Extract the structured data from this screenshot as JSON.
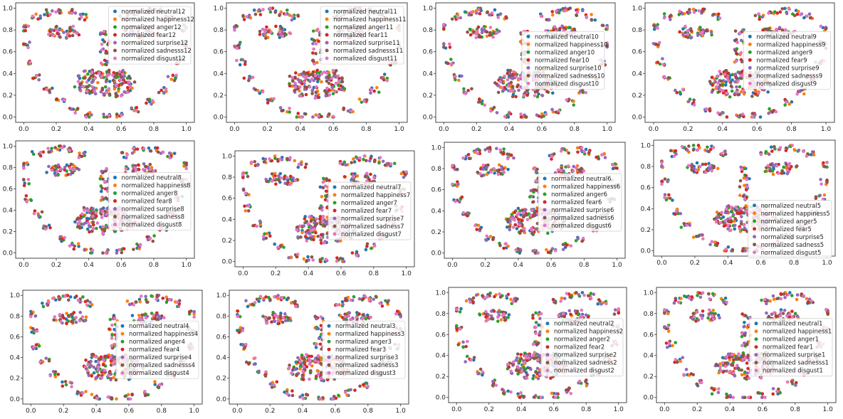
{
  "colors": {
    "neutral": "#1f77b4",
    "happiness": "#ff7f0e",
    "anger": "#2ca02c",
    "fear": "#d62728",
    "surprise": "#9467bd",
    "sadness": "#8c564b",
    "disgust": "#e377c2"
  },
  "chart_data": [
    {
      "type": "scatter",
      "panel": 12,
      "legend": [
        "normalized neutral12",
        "normalized happiness12",
        "normalized anger12",
        "normalized fear12",
        "normalized surprise12",
        "normalized sadnesss12",
        "normalized disgust12"
      ],
      "xticks": [
        "0.0",
        "0.2",
        "0.4",
        "0.6",
        "0.8",
        "1.0"
      ],
      "yticks": [
        "0.0",
        "0.2",
        "0.4",
        "0.6",
        "0.8",
        "1.0"
      ],
      "xlim": [
        0,
        1
      ],
      "ylim": [
        0,
        1
      ],
      "legend_loc": "upper-right"
    },
    {
      "type": "scatter",
      "panel": 11,
      "legend": [
        "normalized neutral11",
        "normalized happiness11",
        "normalized anger11",
        "normalized fear11",
        "normalized surprise11",
        "normalized sadnesss11",
        "normalized disgust11"
      ],
      "xticks": [
        "0.0",
        "0.2",
        "0.4",
        "0.6",
        "0.8",
        "1.0"
      ],
      "yticks": [
        "0.0",
        "0.2",
        "0.4",
        "0.6",
        "0.8",
        "1.0"
      ],
      "xlim": [
        0,
        1
      ],
      "ylim": [
        0,
        1
      ],
      "legend_loc": "upper-right"
    },
    {
      "type": "scatter",
      "panel": 10,
      "legend": [
        "normalized neutral10",
        "normalized happiness10",
        "normalized anger10",
        "normalized fear10",
        "normalized surprise10",
        "normalized sadnesss10",
        "normalized disgust10"
      ],
      "xticks": [
        "0.0",
        "0.2",
        "0.4",
        "0.6",
        "0.8",
        "1.0"
      ],
      "yticks": [
        "0.0",
        "0.2",
        "0.4",
        "0.6",
        "0.8",
        "1.0"
      ],
      "xlim": [
        0,
        1
      ],
      "ylim": [
        0,
        1
      ],
      "legend_loc": "center-right"
    },
    {
      "type": "scatter",
      "panel": 9,
      "legend": [
        "normalized neutral9",
        "normalized happiness9",
        "normalized anger9",
        "normalized fear9",
        "normalized surprise9",
        "normalized sadnesss9",
        "normalized disgust9"
      ],
      "xticks": [
        "0.0",
        "0.2",
        "0.4",
        "0.6",
        "0.8",
        "1.0"
      ],
      "yticks": [
        "0.0",
        "0.2",
        "0.4",
        "0.6",
        "0.8",
        "1.0"
      ],
      "xlim": [
        0,
        1
      ],
      "ylim": [
        0,
        1
      ],
      "legend_loc": "center-right"
    },
    {
      "type": "scatter",
      "panel": 8,
      "legend": [
        "normalized neutral8",
        "normalized happiness8",
        "normalized anger8",
        "normalized fear8",
        "normalized surprise8",
        "normalized sadness8",
        "normalized disgust8"
      ],
      "xticks": [
        "0.0",
        "0.2",
        "0.4",
        "0.6",
        "0.8",
        "1.0"
      ],
      "yticks": [
        "0.0",
        "0.2",
        "0.4",
        "0.6",
        "0.8",
        "1.0"
      ],
      "xlim": [
        0,
        1
      ],
      "ylim": [
        0,
        1
      ],
      "legend_loc": "center-right"
    },
    {
      "type": "scatter",
      "panel": 7,
      "legend": [
        "normalized neutral7",
        "normalized happiness7",
        "normalized anger7",
        "normalized fear7",
        "normalized surprise7",
        "normalized sadness7",
        "normalized disgust7"
      ],
      "xticks": [
        "0.0",
        "0.2",
        "0.4",
        "0.6",
        "0.8",
        "1.0"
      ],
      "yticks": [
        "0.0",
        "0.2",
        "0.4",
        "0.6",
        "0.8",
        "1.0"
      ],
      "xlim": [
        0,
        1
      ],
      "ylim": [
        0,
        1
      ],
      "legend_loc": "center-right"
    },
    {
      "type": "scatter",
      "panel": 6,
      "legend": [
        "normalized neutral6",
        "normalized happiness6",
        "normalized anger6",
        "normalized fear6",
        "normalized surprise6",
        "normalized sadness6",
        "normalized disgust6"
      ],
      "xticks": [
        "0.0",
        "0.2",
        "0.4",
        "0.6",
        "0.8",
        "1.0"
      ],
      "yticks": [
        "0.0",
        "0.2",
        "0.4",
        "0.6",
        "0.8",
        "1.0"
      ],
      "xlim": [
        0,
        1
      ],
      "ylim": [
        0,
        1
      ],
      "legend_loc": "center-right"
    },
    {
      "type": "scatter",
      "panel": 5,
      "legend": [
        "normalized neutral5",
        "normalized happiness5",
        "normalized anger5",
        "normalized fear5",
        "normalized surprise5",
        "normalized sadness5",
        "normalized disgust5"
      ],
      "xticks": [
        "0.0",
        "0.2",
        "0.4",
        "0.6",
        "0.8",
        "1.0"
      ],
      "yticks": [
        "0.0",
        "0.2",
        "0.4",
        "0.6",
        "0.8",
        "1.0"
      ],
      "xlim": [
        0,
        1
      ],
      "ylim": [
        0,
        1
      ],
      "legend_loc": "lower-right"
    },
    {
      "type": "scatter",
      "panel": 4,
      "legend": [
        "normalized neutral4",
        "normalized happiness4",
        "normalized anger4",
        "normalized fear4",
        "normalized surprise4",
        "normalized sadnesss4",
        "normalized disgust4"
      ],
      "xticks": [
        "0.0",
        "0.2",
        "0.4",
        "0.6",
        "0.8",
        "1.0"
      ],
      "yticks": [
        "0.0",
        "0.2",
        "0.4",
        "0.6",
        "0.8",
        "1.0"
      ],
      "xlim": [
        0,
        1
      ],
      "ylim": [
        0,
        1
      ],
      "legend_loc": "center-right"
    },
    {
      "type": "scatter",
      "panel": 3,
      "legend": [
        "normalized neutral3",
        "normalized happiness3",
        "normalized anger3",
        "normalized fear3",
        "normalized surprise3",
        "normalized sadness3",
        "normalized disgust3"
      ],
      "xticks": [
        "0.0",
        "0.2",
        "0.4",
        "0.6",
        "0.8",
        "1.0"
      ],
      "yticks": [
        "0.0",
        "0.2",
        "0.4",
        "0.6",
        "0.8",
        "1.0"
      ],
      "xlim": [
        0,
        1
      ],
      "ylim": [
        0,
        1
      ],
      "legend_loc": "center-right"
    },
    {
      "type": "scatter",
      "panel": 2,
      "legend": [
        "normalized neutral2",
        "normalized happiness2",
        "normalized anger2",
        "normalized fear2",
        "normalized surprise2",
        "normalized sadness2",
        "normalized disgust2"
      ],
      "xticks": [
        "0.0",
        "0.2",
        "0.4",
        "0.6",
        "0.8",
        "1.0"
      ],
      "yticks": [
        "0.0",
        "0.2",
        "0.4",
        "0.6",
        "0.8",
        "1.0"
      ],
      "xlim": [
        0,
        1
      ],
      "ylim": [
        0,
        1
      ],
      "legend_loc": "center-right"
    },
    {
      "type": "scatter",
      "panel": 1,
      "legend": [
        "normalized neutral1",
        "normalized happiness1",
        "normalized anger1",
        "normalized fear1",
        "normalized surprise1",
        "normalized sadnesss1",
        "normalized disgust1"
      ],
      "xticks": [
        "0.0",
        "0.2",
        "0.4",
        "0.6",
        "0.8",
        "1.0"
      ],
      "yticks": [
        "0.0",
        "0.2",
        "0.4",
        "0.6",
        "0.8",
        "1.0"
      ],
      "xlim": [
        0,
        1
      ],
      "ylim": [
        0,
        1
      ],
      "legend_loc": "center-right"
    }
  ]
}
